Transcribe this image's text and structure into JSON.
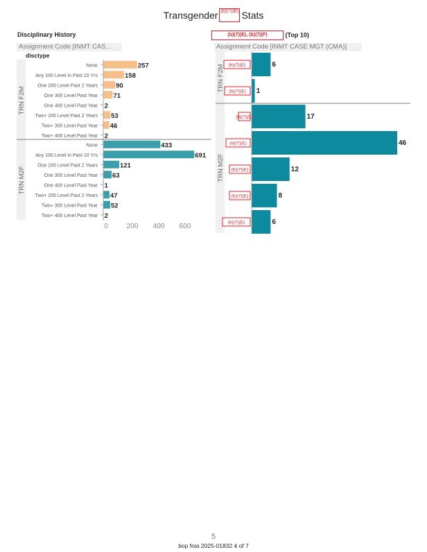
{
  "page": {
    "title_left": "Transgender",
    "title_right": "Stats",
    "title_redaction": "(b)(7)(E)",
    "page_number": "5",
    "foia_line": "bop foia 2025-01832 4 of 7"
  },
  "left_panel": {
    "title": "Disciplinary History",
    "subtitle": "Assignment Code [INMT CAS...",
    "column_label": "disctype"
  },
  "right_panel": {
    "title_redaction": "(b)(7)(E), (b)(7)(F)",
    "title_suffix": "(Top 10)",
    "subtitle": "Assignment Code [INMT CASE MGT (CMA)]"
  },
  "colors": {
    "f2m_bar": "#f7c08a",
    "m2f_bar": "#3a9eab",
    "right_bar": "#0e8a9e",
    "redaction": "#e0202a"
  },
  "chart_data": [
    {
      "type": "bar",
      "orientation": "horizontal",
      "title": "Disciplinary History",
      "categories": [
        "None",
        "Any 100 Level in Past 10 Yrs",
        "One 200 Level Past 2 Years",
        "One 300 Level Past Year",
        "One 400 Level Past Year",
        "Two+ 200 Level Past 2 Years",
        "Two+ 300 Level Past Year",
        "Two+ 400 Level Past Year"
      ],
      "series": [
        {
          "name": "TRN F2M",
          "values": [
            257,
            158,
            90,
            71,
            2,
            53,
            46,
            2
          ]
        },
        {
          "name": "TRN M2F",
          "values": [
            433,
            691,
            121,
            63,
            1,
            47,
            52,
            2
          ]
        }
      ],
      "xlim": [
        0,
        700
      ],
      "xticks": [
        0,
        200,
        400,
        600
      ],
      "grid": false
    },
    {
      "type": "bar",
      "orientation": "horizontal",
      "title": "(b)(7)(E), (b)(7)(F) (Top 10)",
      "series": [
        {
          "name": "TRN F2M",
          "categories": [
            "(b)(7)(E)",
            "(b)(7)(E)"
          ],
          "values": [
            6,
            1
          ]
        },
        {
          "name": "TRN M2F",
          "categories": [
            "(b)(7)(E)",
            "(b)(7)(E)",
            "(b)(7)(E)",
            "(b)(7)(E)",
            "(b)(7)(E)"
          ],
          "values": [
            17,
            46,
            12,
            8,
            6
          ]
        }
      ],
      "xlim": [
        0,
        46
      ],
      "grid": false
    }
  ]
}
